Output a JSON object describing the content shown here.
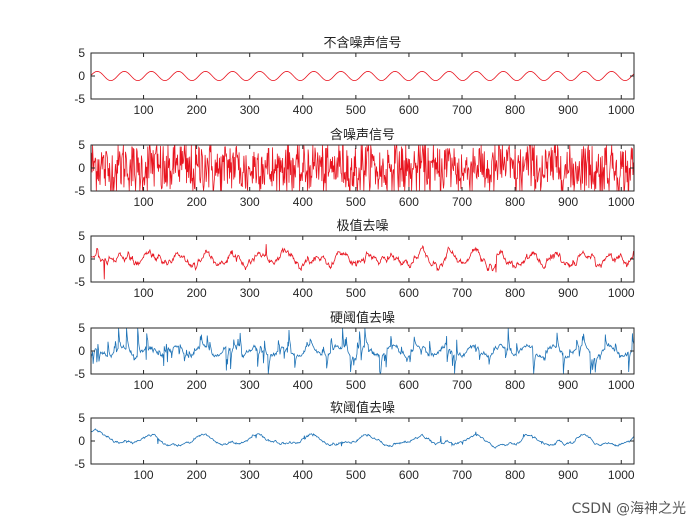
{
  "chart_data": [
    {
      "type": "line",
      "title": "不含噪声信号",
      "color": "#e8141f",
      "xlim": [
        1,
        1024
      ],
      "ylim": [
        -5,
        5
      ],
      "xticks": [
        100,
        200,
        300,
        400,
        500,
        600,
        700,
        800,
        900,
        1000
      ],
      "yticks": [
        5,
        0,
        -5
      ],
      "signal": "clean",
      "amplitude": 1,
      "period": 51
    },
    {
      "type": "line",
      "title": "含噪声信号",
      "color": "#e8141f",
      "xlim": [
        1,
        1024
      ],
      "ylim": [
        -5,
        5
      ],
      "xticks": [
        100,
        200,
        300,
        400,
        500,
        600,
        700,
        800,
        900,
        1000
      ],
      "yticks": [
        5,
        0,
        -5
      ],
      "signal": "noisy",
      "amplitude": 1,
      "period": 51
    },
    {
      "type": "line",
      "title": "极值去噪",
      "color": "#e8141f",
      "xlim": [
        1,
        1024
      ],
      "ylim": [
        -5,
        5
      ],
      "xticks": [
        100,
        200,
        300,
        400,
        500,
        600,
        700,
        800,
        900,
        1000
      ],
      "yticks": [
        5,
        0,
        -5
      ],
      "signal": "extremum",
      "amplitude": 1,
      "period": 51
    },
    {
      "type": "line",
      "title": "硬阈值去噪",
      "color": "#1f73b6",
      "xlim": [
        1,
        1024
      ],
      "ylim": [
        -5,
        5
      ],
      "xticks": [
        100,
        200,
        300,
        400,
        500,
        600,
        700,
        800,
        900,
        1000
      ],
      "yticks": [
        5,
        0,
        -5
      ],
      "signal": "hard",
      "amplitude": 1,
      "period": 51
    },
    {
      "type": "line",
      "title": "软阈值去噪",
      "color": "#1f73b6",
      "xlim": [
        1,
        1024
      ],
      "ylim": [
        -5,
        5
      ],
      "xticks": [
        100,
        200,
        300,
        400,
        500,
        600,
        700,
        800,
        900,
        1000
      ],
      "yticks": [
        5,
        0,
        -5
      ],
      "signal": "soft",
      "amplitude": 1,
      "period": 51
    }
  ],
  "watermark": "CSDN @海神之光"
}
